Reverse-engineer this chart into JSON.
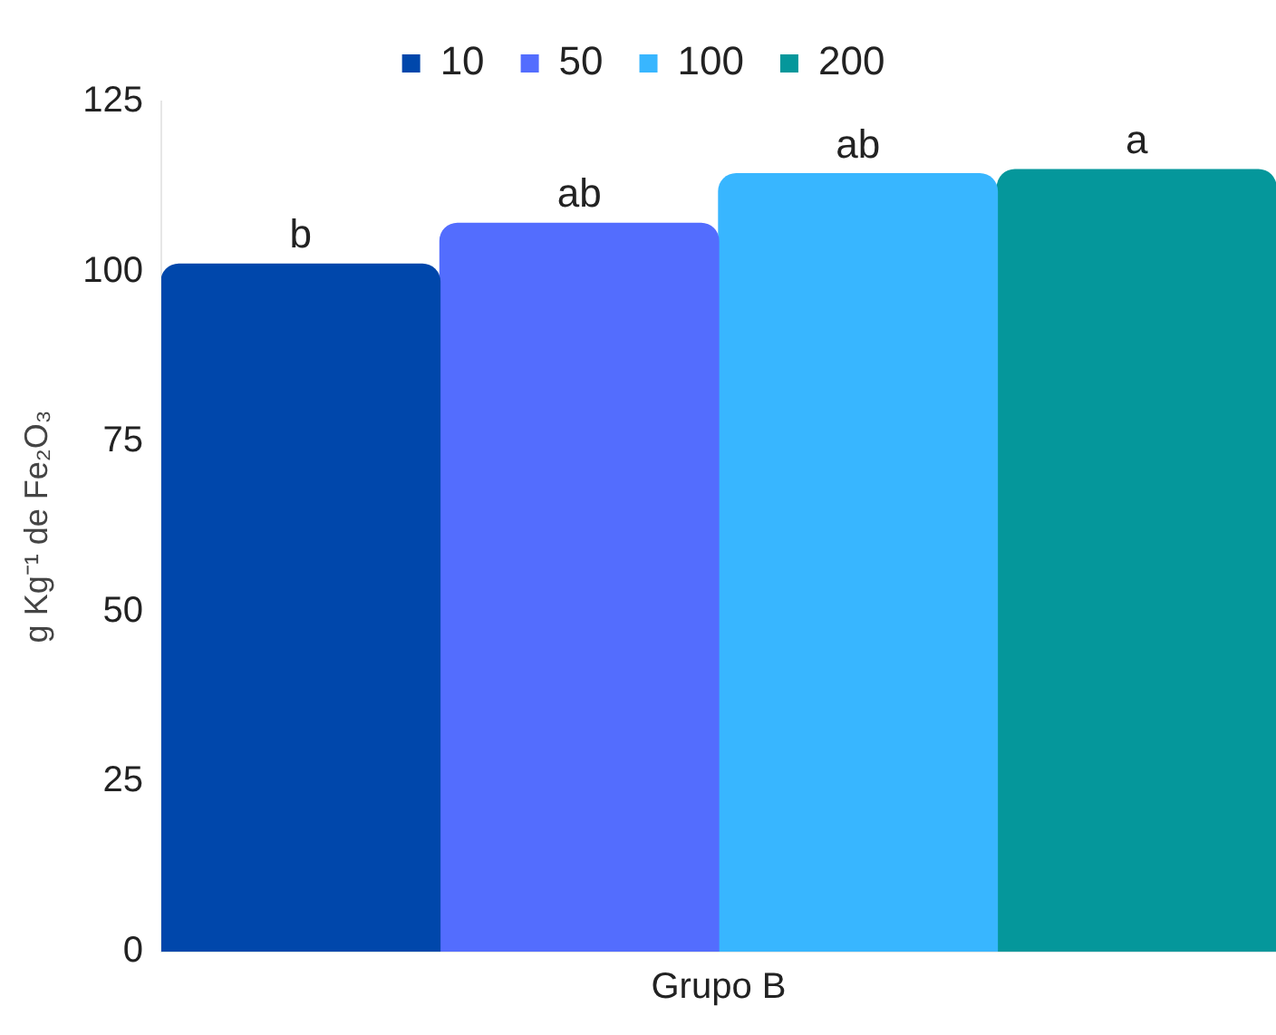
{
  "chart_data": {
    "type": "bar",
    "ylabel": "g Kg⁻¹ de Fe₂O₃",
    "categories": [
      "Grupo B"
    ],
    "series": [
      {
        "name": "10",
        "color": "#0047ab",
        "values": [
          101.1
        ],
        "value_labels": [
          "b"
        ]
      },
      {
        "name": "50",
        "color": "#536dfe",
        "values": [
          107.1
        ],
        "value_labels": [
          "ab"
        ]
      },
      {
        "name": "100",
        "color": "#38b6ff",
        "values": [
          114.4
        ],
        "value_labels": [
          "ab"
        ]
      },
      {
        "name": "200",
        "color": "#05979b",
        "values": [
          115.0
        ],
        "value_labels": [
          "a"
        ]
      }
    ],
    "ylim": [
      0,
      125
    ],
    "yticks": [
      0,
      25,
      50,
      75,
      100,
      125
    ],
    "grid": false,
    "legend": "top"
  }
}
